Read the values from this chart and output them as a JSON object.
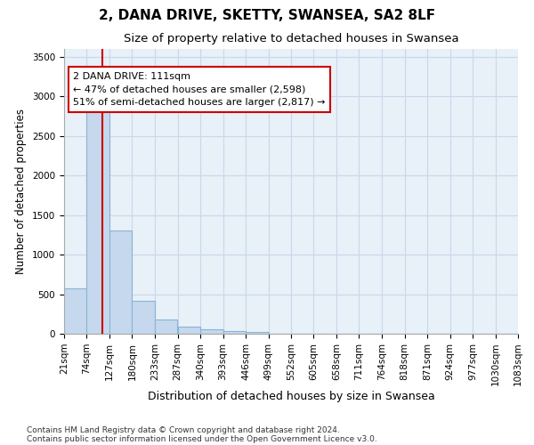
{
  "title1": "2, DANA DRIVE, SKETTY, SWANSEA, SA2 8LF",
  "title2": "Size of property relative to detached houses in Swansea",
  "xlabel": "Distribution of detached houses by size in Swansea",
  "ylabel": "Number of detached properties",
  "bar_color": "#c5d8ed",
  "bar_edge_color": "#8ab4d4",
  "grid_color": "#c8d8ea",
  "plot_bg_color": "#e8f0f8",
  "fig_bg_color": "#ffffff",
  "property_line_color": "#cc0000",
  "property_size": 111,
  "annotation_text": "2 DANA DRIVE: 111sqm\n← 47% of detached houses are smaller (2,598)\n51% of semi-detached houses are larger (2,817) →",
  "annotation_box_facecolor": "#ffffff",
  "annotation_box_edgecolor": "#cc0000",
  "footnote1": "Contains HM Land Registry data © Crown copyright and database right 2024.",
  "footnote2": "Contains public sector information licensed under the Open Government Licence v3.0.",
  "bin_edges": [
    21,
    74,
    127,
    180,
    233,
    287,
    340,
    393,
    446,
    499,
    552,
    605,
    658,
    711,
    764,
    818,
    871,
    924,
    977,
    1030,
    1083
  ],
  "bin_counts": [
    575,
    2920,
    1300,
    415,
    175,
    90,
    55,
    35,
    20,
    0,
    0,
    0,
    0,
    0,
    0,
    0,
    0,
    0,
    0,
    0
  ],
  "ylim": [
    0,
    3600
  ],
  "yticks": [
    0,
    500,
    1000,
    1500,
    2000,
    2500,
    3000,
    3500
  ],
  "title1_fontsize": 11,
  "title2_fontsize": 9.5,
  "xlabel_fontsize": 9,
  "ylabel_fontsize": 8.5,
  "tick_fontsize": 7.5,
  "annotation_fontsize": 8,
  "footnote_fontsize": 6.5
}
